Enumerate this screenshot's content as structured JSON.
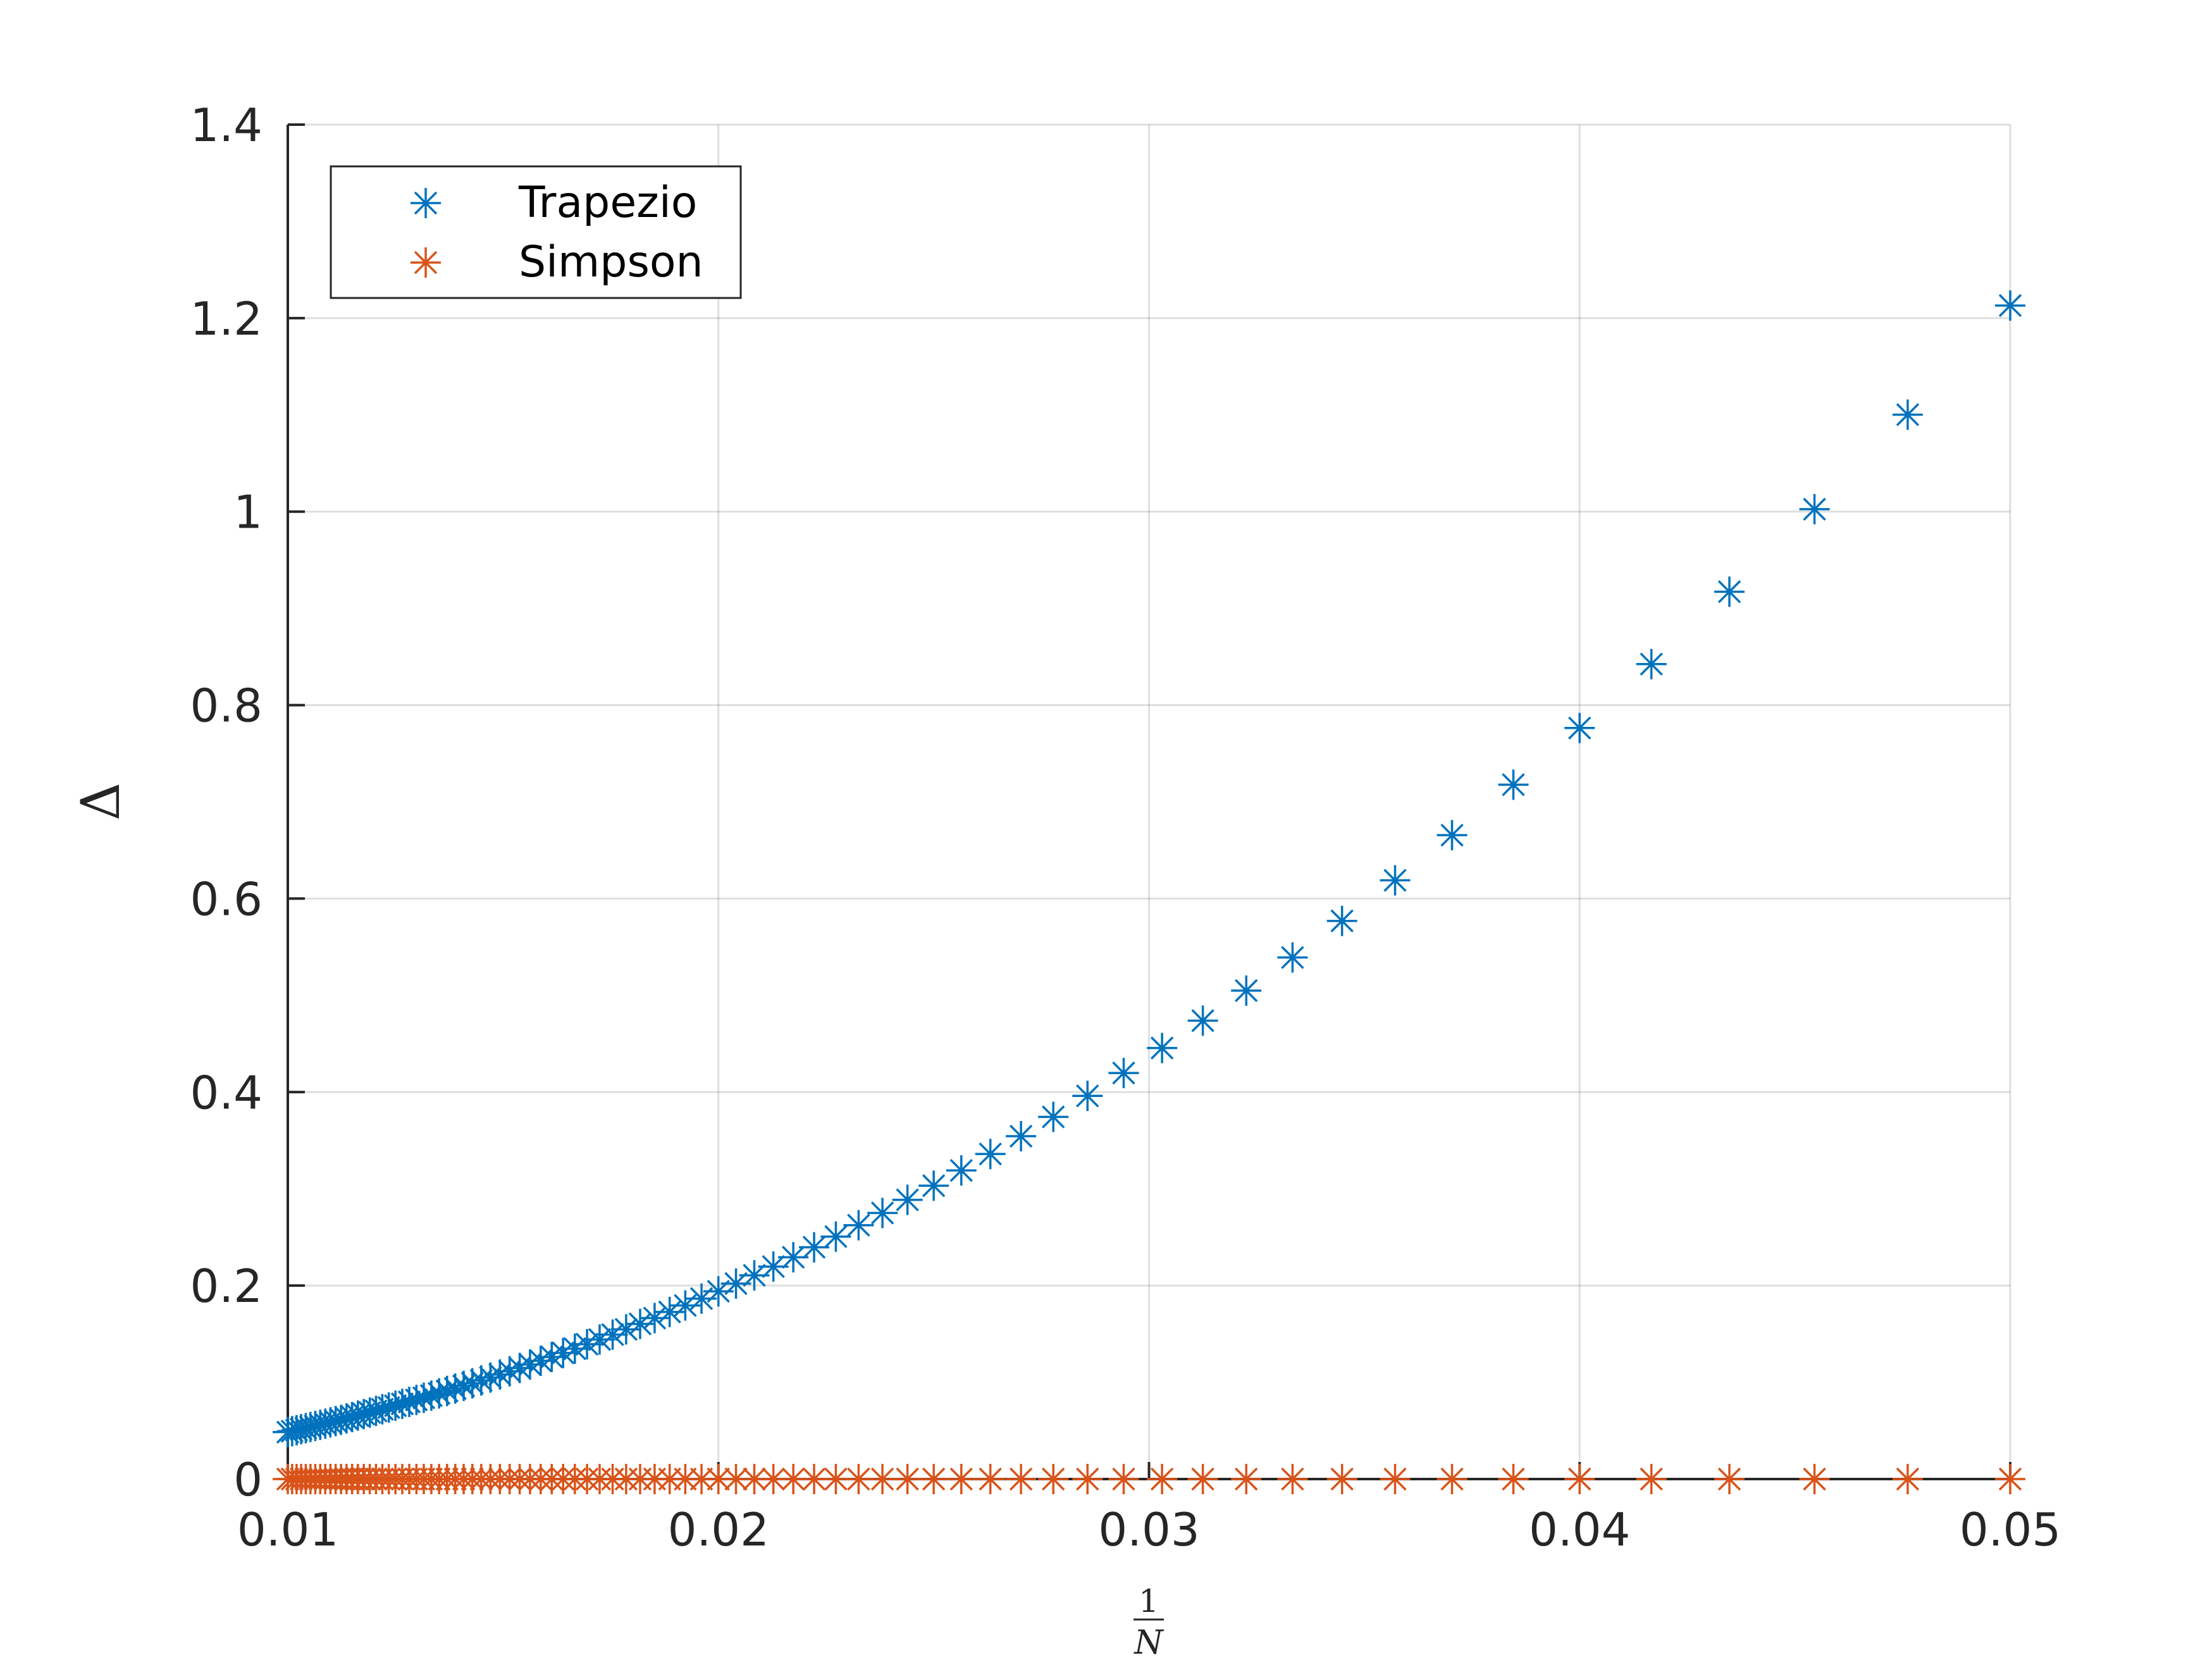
{
  "chart_data": {
    "type": "scatter",
    "title": "",
    "xlabel": {
      "numerator": "1",
      "denominator": "N"
    },
    "ylabel": "Δ",
    "xlim": [
      0.01,
      0.05
    ],
    "ylim": [
      0,
      1.4
    ],
    "xticks": [
      0.01,
      0.02,
      0.03,
      0.04,
      0.05
    ],
    "xtick_labels": [
      "0.01",
      "0.02",
      "0.03",
      "0.04",
      "0.05"
    ],
    "yticks": [
      0,
      0.2,
      0.4,
      0.6,
      0.8,
      1,
      1.2,
      1.4
    ],
    "ytick_labels": [
      "0",
      "0.2",
      "0.4",
      "0.6",
      "0.8",
      "1",
      "1.2",
      "1.4"
    ],
    "grid": true,
    "legend": {
      "position": "top-left",
      "entries": [
        "Trapezio",
        "Simpson"
      ]
    },
    "marker": "asterisk",
    "n_range": [
      20,
      100
    ],
    "series": [
      {
        "name": "Trapezio",
        "color": "#0072BD",
        "model": "c*x^2",
        "coef": 485.2
      },
      {
        "name": "Simpson",
        "color": "#D95319",
        "model": "constant",
        "value": 0
      }
    ]
  }
}
